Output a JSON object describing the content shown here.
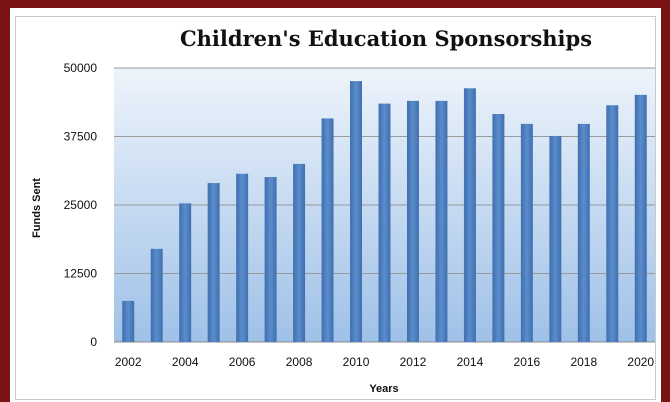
{
  "chart_data": {
    "type": "bar",
    "title": "Children's Education Sponsorships",
    "xlabel": "Years",
    "ylabel": "Funds Sent",
    "ylim": [
      0,
      50000
    ],
    "yticks": [
      "0",
      "12500",
      "25000",
      "37500",
      "50000"
    ],
    "xtick_labels": [
      "2002",
      "2004",
      "2006",
      "2008",
      "2010",
      "2012",
      "2014",
      "2016",
      "2018",
      "2020"
    ],
    "categories": [
      "2002",
      "2003",
      "2004",
      "2005",
      "2006",
      "2007",
      "2008",
      "2009",
      "2010",
      "2011",
      "2012",
      "2013",
      "2014",
      "2015",
      "2016",
      "2017",
      "2018",
      "2019",
      "2020"
    ],
    "values": [
      7500,
      17000,
      25300,
      29000,
      30700,
      30100,
      32500,
      40800,
      47600,
      43500,
      44000,
      44000,
      46300,
      41600,
      39800,
      37600,
      39800,
      43200,
      45100
    ],
    "grid": true,
    "bar_color": "#4f81bd"
  }
}
